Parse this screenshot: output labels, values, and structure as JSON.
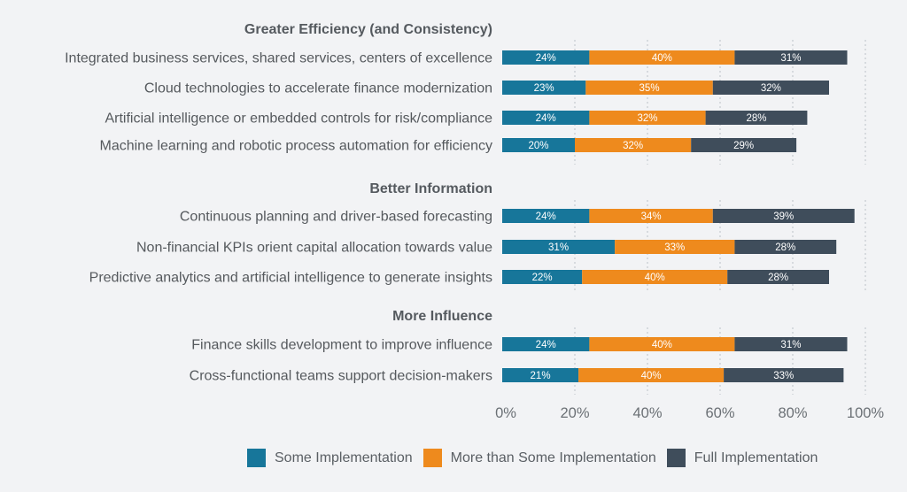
{
  "chart_data": {
    "type": "bar",
    "orientation": "horizontal",
    "stacked": true,
    "xlabel": "",
    "ylabel": "",
    "xlim": [
      0,
      100
    ],
    "x_ticks": [
      "0%",
      "20%",
      "40%",
      "60%",
      "80%",
      "100%"
    ],
    "grid": true,
    "legend_position": "bottom",
    "series": [
      {
        "name": "Some Implementation",
        "color": "#17769a"
      },
      {
        "name": "More than Some Implementation",
        "color": "#ee8a1d"
      },
      {
        "name": "Full Implementation",
        "color": "#3f4d5b"
      }
    ],
    "groups": [
      {
        "title": "Greater Efficiency (and Consistency)",
        "rows": [
          {
            "label": "Integrated business services, shared services, centers of excellence",
            "values": [
              24,
              40,
              31
            ]
          },
          {
            "label": "Cloud technologies to accelerate finance modernization",
            "values": [
              23,
              35,
              32
            ]
          },
          {
            "label": "Artificial intelligence or embedded controls for risk/compliance",
            "values": [
              24,
              32,
              28
            ]
          },
          {
            "label": "Machine learning and robotic process automation for efficiency",
            "values": [
              20,
              32,
              29
            ]
          }
        ]
      },
      {
        "title": "Better Information",
        "rows": [
          {
            "label": "Continuous planning and driver-based forecasting",
            "values": [
              24,
              34,
              39
            ]
          },
          {
            "label": "Non-financial KPIs orient capital allocation towards value",
            "values": [
              31,
              33,
              28
            ]
          },
          {
            "label": "Predictive analytics and artificial intelligence to generate insights",
            "values": [
              22,
              40,
              28
            ]
          }
        ]
      },
      {
        "title": "More Influence",
        "rows": [
          {
            "label": "Finance skills development to improve influence",
            "values": [
              24,
              40,
              31
            ]
          },
          {
            "label": "Cross-functional teams support decision-makers",
            "values": [
              21,
              40,
              33
            ]
          }
        ]
      }
    ]
  }
}
